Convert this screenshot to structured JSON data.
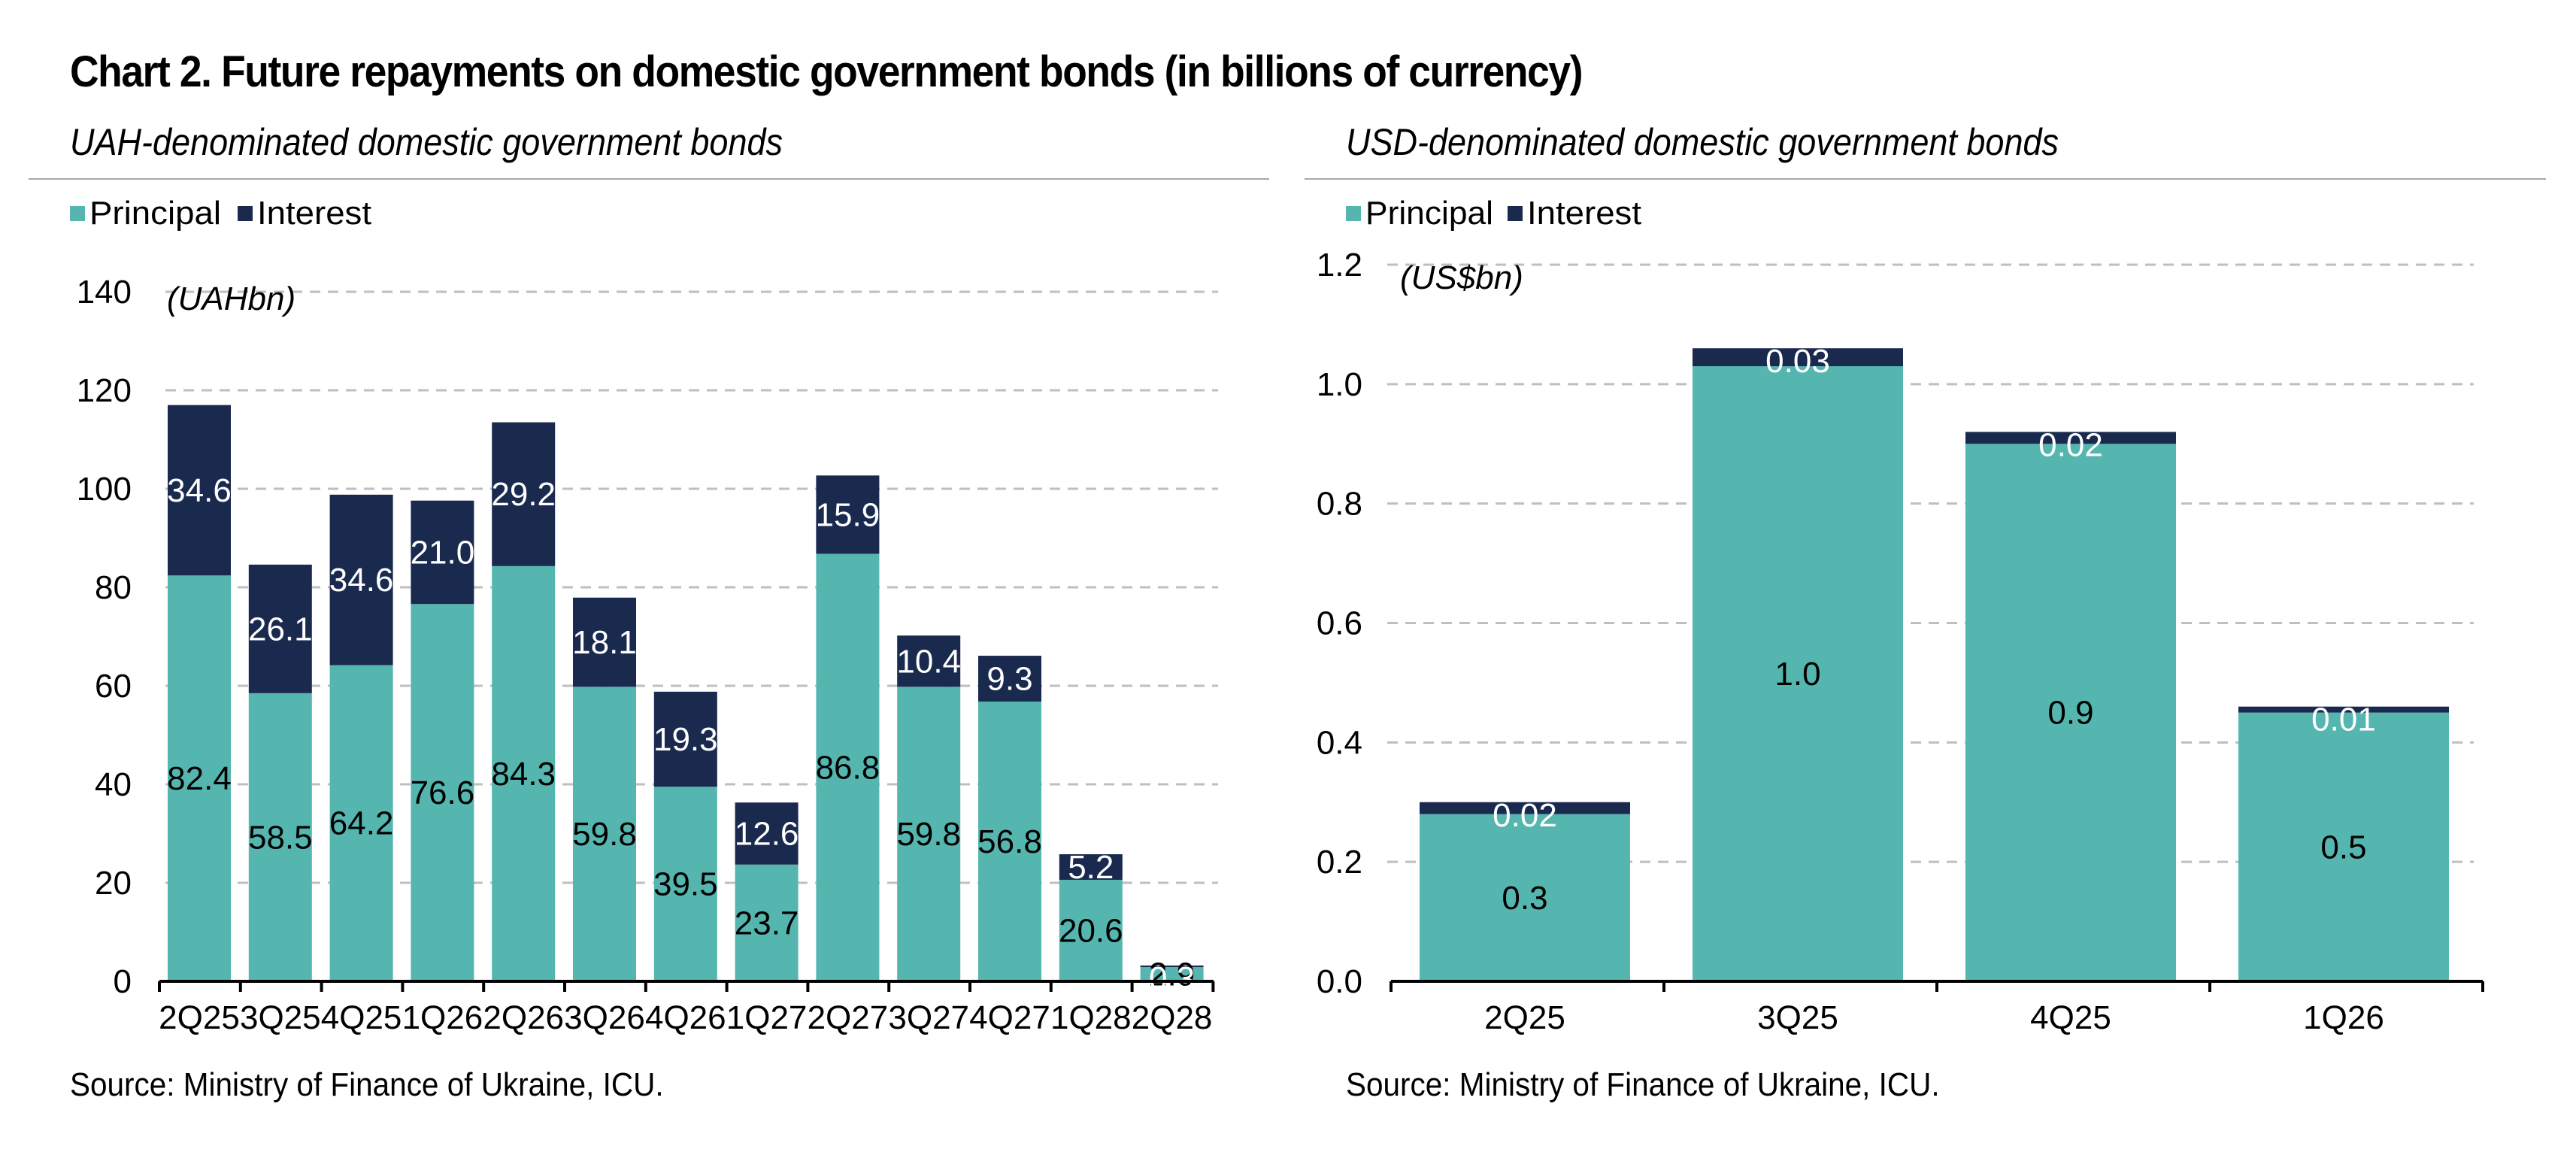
{
  "title": "Chart 2. Future repayments on domestic government bonds (in billions of currency)",
  "source": "Source: Ministry of Finance of Ukraine, ICU.",
  "colors": {
    "principal": "#55b6b0",
    "interest": "#1a2a4f",
    "grid": "#bfbfbf",
    "axis": "#000000"
  },
  "chart_data": [
    {
      "type": "bar",
      "stacked": true,
      "subtitle": "UAH-denominated domestic government bonds",
      "unit_label": "(UAHbn)",
      "legend": [
        "Principal",
        "Interest"
      ],
      "legend_position": "top-left",
      "grid": true,
      "ylim": [
        0,
        140
      ],
      "yticks": [
        0,
        20,
        40,
        60,
        80,
        100,
        120,
        140
      ],
      "ytick_labels": [
        "0",
        "20",
        "40",
        "60",
        "80",
        "100",
        "120",
        "140"
      ],
      "categories": [
        "2Q25",
        "3Q25",
        "4Q25",
        "1Q26",
        "2Q26",
        "3Q26",
        "4Q26",
        "1Q27",
        "2Q27",
        "3Q27",
        "4Q27",
        "1Q28",
        "2Q28"
      ],
      "series": [
        {
          "name": "Principal",
          "values": [
            82.4,
            58.5,
            64.2,
            76.6,
            84.3,
            59.8,
            39.5,
            23.7,
            86.8,
            59.8,
            56.8,
            20.6,
            2.9
          ],
          "labels": [
            "82.4",
            "58.5",
            "64.2",
            "76.6",
            "84.3",
            "59.8",
            "39.5",
            "23.7",
            "86.8",
            "59.8",
            "56.8",
            "20.6",
            "2.9"
          ]
        },
        {
          "name": "Interest",
          "values": [
            34.6,
            26.1,
            34.6,
            21.0,
            29.2,
            18.1,
            19.3,
            12.6,
            15.9,
            10.4,
            9.3,
            5.2,
            0.3
          ],
          "labels": [
            "34.6",
            "26.1",
            "34.6",
            "21.0",
            "29.2",
            "18.1",
            "19.3",
            "12.6",
            "15.9",
            "10.4",
            "9.3",
            "5.2",
            "0.3"
          ]
        }
      ]
    },
    {
      "type": "bar",
      "stacked": true,
      "subtitle": "USD-denominated domestic government bonds",
      "unit_label": "(US$bn)",
      "legend": [
        "Principal",
        "Interest"
      ],
      "legend_position": "top-left",
      "grid": true,
      "ylim": [
        0,
        1.2
      ],
      "yticks": [
        0,
        0.2,
        0.4,
        0.6,
        0.8,
        1.0,
        1.2
      ],
      "ytick_labels": [
        "0.0",
        "0.2",
        "0.4",
        "0.6",
        "0.8",
        "1.0",
        "1.2"
      ],
      "categories": [
        "2Q25",
        "3Q25",
        "4Q25",
        "1Q26"
      ],
      "series": [
        {
          "name": "Principal",
          "values": [
            0.28,
            1.03,
            0.9,
            0.45
          ],
          "labels": [
            "0.3",
            "1.0",
            "0.9",
            "0.5"
          ]
        },
        {
          "name": "Interest",
          "values": [
            0.02,
            0.03,
            0.02,
            0.01
          ],
          "labels": [
            "0.02",
            "0.03",
            "0.02",
            "0.01"
          ]
        }
      ]
    }
  ]
}
